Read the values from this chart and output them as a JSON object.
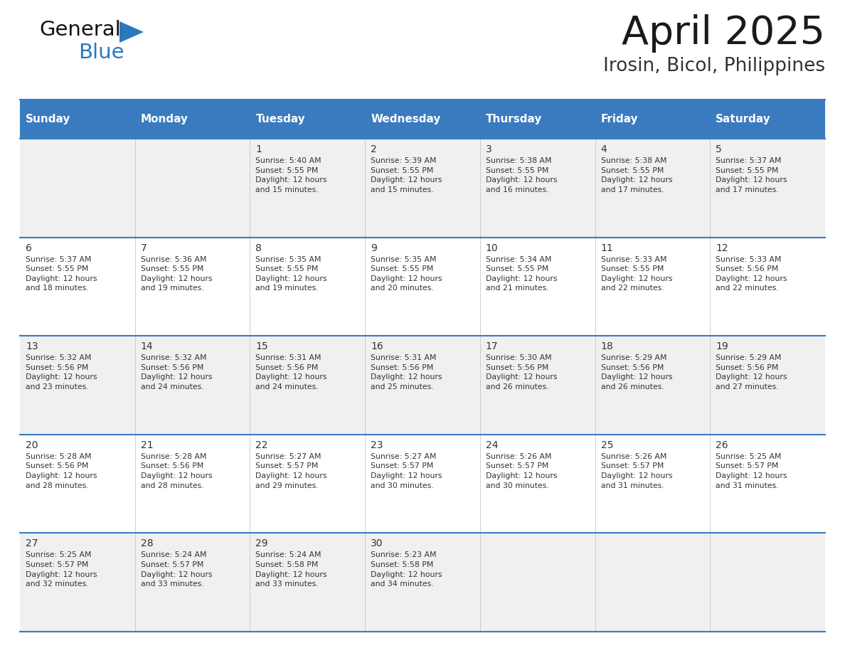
{
  "title": "April 2025",
  "subtitle": "Irosin, Bicol, Philippines",
  "days_of_week": [
    "Sunday",
    "Monday",
    "Tuesday",
    "Wednesday",
    "Thursday",
    "Friday",
    "Saturday"
  ],
  "header_bg_color": "#3A7BBF",
  "header_text_color": "#FFFFFF",
  "cell_bg_even": "#F0F0F0",
  "cell_bg_odd": "#FFFFFF",
  "day_num_color": "#333333",
  "info_text_color": "#333333",
  "grid_line_color": "#3A7BBF",
  "title_color": "#1a1a1a",
  "subtitle_color": "#333333",
  "logo_general_color": "#111111",
  "logo_blue_color": "#2878BE",
  "calendar_data": [
    {
      "day": 1,
      "col": 2,
      "row": 0,
      "sunrise": "5:40 AM",
      "sunset": "5:55 PM",
      "daylight_line1": "Daylight: 12 hours",
      "daylight_line2": "and 15 minutes."
    },
    {
      "day": 2,
      "col": 3,
      "row": 0,
      "sunrise": "5:39 AM",
      "sunset": "5:55 PM",
      "daylight_line1": "Daylight: 12 hours",
      "daylight_line2": "and 15 minutes."
    },
    {
      "day": 3,
      "col": 4,
      "row": 0,
      "sunrise": "5:38 AM",
      "sunset": "5:55 PM",
      "daylight_line1": "Daylight: 12 hours",
      "daylight_line2": "and 16 minutes."
    },
    {
      "day": 4,
      "col": 5,
      "row": 0,
      "sunrise": "5:38 AM",
      "sunset": "5:55 PM",
      "daylight_line1": "Daylight: 12 hours",
      "daylight_line2": "and 17 minutes."
    },
    {
      "day": 5,
      "col": 6,
      "row": 0,
      "sunrise": "5:37 AM",
      "sunset": "5:55 PM",
      "daylight_line1": "Daylight: 12 hours",
      "daylight_line2": "and 17 minutes."
    },
    {
      "day": 6,
      "col": 0,
      "row": 1,
      "sunrise": "5:37 AM",
      "sunset": "5:55 PM",
      "daylight_line1": "Daylight: 12 hours",
      "daylight_line2": "and 18 minutes."
    },
    {
      "day": 7,
      "col": 1,
      "row": 1,
      "sunrise": "5:36 AM",
      "sunset": "5:55 PM",
      "daylight_line1": "Daylight: 12 hours",
      "daylight_line2": "and 19 minutes."
    },
    {
      "day": 8,
      "col": 2,
      "row": 1,
      "sunrise": "5:35 AM",
      "sunset": "5:55 PM",
      "daylight_line1": "Daylight: 12 hours",
      "daylight_line2": "and 19 minutes."
    },
    {
      "day": 9,
      "col": 3,
      "row": 1,
      "sunrise": "5:35 AM",
      "sunset": "5:55 PM",
      "daylight_line1": "Daylight: 12 hours",
      "daylight_line2": "and 20 minutes."
    },
    {
      "day": 10,
      "col": 4,
      "row": 1,
      "sunrise": "5:34 AM",
      "sunset": "5:55 PM",
      "daylight_line1": "Daylight: 12 hours",
      "daylight_line2": "and 21 minutes."
    },
    {
      "day": 11,
      "col": 5,
      "row": 1,
      "sunrise": "5:33 AM",
      "sunset": "5:55 PM",
      "daylight_line1": "Daylight: 12 hours",
      "daylight_line2": "and 22 minutes."
    },
    {
      "day": 12,
      "col": 6,
      "row": 1,
      "sunrise": "5:33 AM",
      "sunset": "5:56 PM",
      "daylight_line1": "Daylight: 12 hours",
      "daylight_line2": "and 22 minutes."
    },
    {
      "day": 13,
      "col": 0,
      "row": 2,
      "sunrise": "5:32 AM",
      "sunset": "5:56 PM",
      "daylight_line1": "Daylight: 12 hours",
      "daylight_line2": "and 23 minutes."
    },
    {
      "day": 14,
      "col": 1,
      "row": 2,
      "sunrise": "5:32 AM",
      "sunset": "5:56 PM",
      "daylight_line1": "Daylight: 12 hours",
      "daylight_line2": "and 24 minutes."
    },
    {
      "day": 15,
      "col": 2,
      "row": 2,
      "sunrise": "5:31 AM",
      "sunset": "5:56 PM",
      "daylight_line1": "Daylight: 12 hours",
      "daylight_line2": "and 24 minutes."
    },
    {
      "day": 16,
      "col": 3,
      "row": 2,
      "sunrise": "5:31 AM",
      "sunset": "5:56 PM",
      "daylight_line1": "Daylight: 12 hours",
      "daylight_line2": "and 25 minutes."
    },
    {
      "day": 17,
      "col": 4,
      "row": 2,
      "sunrise": "5:30 AM",
      "sunset": "5:56 PM",
      "daylight_line1": "Daylight: 12 hours",
      "daylight_line2": "and 26 minutes."
    },
    {
      "day": 18,
      "col": 5,
      "row": 2,
      "sunrise": "5:29 AM",
      "sunset": "5:56 PM",
      "daylight_line1": "Daylight: 12 hours",
      "daylight_line2": "and 26 minutes."
    },
    {
      "day": 19,
      "col": 6,
      "row": 2,
      "sunrise": "5:29 AM",
      "sunset": "5:56 PM",
      "daylight_line1": "Daylight: 12 hours",
      "daylight_line2": "and 27 minutes."
    },
    {
      "day": 20,
      "col": 0,
      "row": 3,
      "sunrise": "5:28 AM",
      "sunset": "5:56 PM",
      "daylight_line1": "Daylight: 12 hours",
      "daylight_line2": "and 28 minutes."
    },
    {
      "day": 21,
      "col": 1,
      "row": 3,
      "sunrise": "5:28 AM",
      "sunset": "5:56 PM",
      "daylight_line1": "Daylight: 12 hours",
      "daylight_line2": "and 28 minutes."
    },
    {
      "day": 22,
      "col": 2,
      "row": 3,
      "sunrise": "5:27 AM",
      "sunset": "5:57 PM",
      "daylight_line1": "Daylight: 12 hours",
      "daylight_line2": "and 29 minutes."
    },
    {
      "day": 23,
      "col": 3,
      "row": 3,
      "sunrise": "5:27 AM",
      "sunset": "5:57 PM",
      "daylight_line1": "Daylight: 12 hours",
      "daylight_line2": "and 30 minutes."
    },
    {
      "day": 24,
      "col": 4,
      "row": 3,
      "sunrise": "5:26 AM",
      "sunset": "5:57 PM",
      "daylight_line1": "Daylight: 12 hours",
      "daylight_line2": "and 30 minutes."
    },
    {
      "day": 25,
      "col": 5,
      "row": 3,
      "sunrise": "5:26 AM",
      "sunset": "5:57 PM",
      "daylight_line1": "Daylight: 12 hours",
      "daylight_line2": "and 31 minutes."
    },
    {
      "day": 26,
      "col": 6,
      "row": 3,
      "sunrise": "5:25 AM",
      "sunset": "5:57 PM",
      "daylight_line1": "Daylight: 12 hours",
      "daylight_line2": "and 31 minutes."
    },
    {
      "day": 27,
      "col": 0,
      "row": 4,
      "sunrise": "5:25 AM",
      "sunset": "5:57 PM",
      "daylight_line1": "Daylight: 12 hours",
      "daylight_line2": "and 32 minutes."
    },
    {
      "day": 28,
      "col": 1,
      "row": 4,
      "sunrise": "5:24 AM",
      "sunset": "5:57 PM",
      "daylight_line1": "Daylight: 12 hours",
      "daylight_line2": "and 33 minutes."
    },
    {
      "day": 29,
      "col": 2,
      "row": 4,
      "sunrise": "5:24 AM",
      "sunset": "5:58 PM",
      "daylight_line1": "Daylight: 12 hours",
      "daylight_line2": "and 33 minutes."
    },
    {
      "day": 30,
      "col": 3,
      "row": 4,
      "sunrise": "5:23 AM",
      "sunset": "5:58 PM",
      "daylight_line1": "Daylight: 12 hours",
      "daylight_line2": "and 34 minutes."
    }
  ]
}
